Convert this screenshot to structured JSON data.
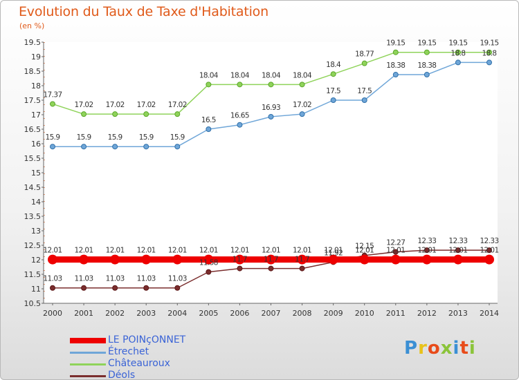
{
  "title": "Evolution du Taux de Taxe d'Habitation",
  "unit_label": "(en %)",
  "logo": {
    "text": "Proxiti",
    "colors": [
      "#3b8fd4",
      "#e8c21a",
      "#e84b1a",
      "#8bc43a",
      "#3b8fd4",
      "#e84b1a",
      "#8bc43a"
    ]
  },
  "chart_data": {
    "type": "line",
    "title": "Evolution du Taux de Taxe d'Habitation",
    "ylabel": "(en %)",
    "xlabel": "",
    "x": [
      "2000",
      "2001",
      "2002",
      "2003",
      "2004",
      "2005",
      "2006",
      "2007",
      "2008",
      "2009",
      "2010",
      "2011",
      "2012",
      "2013",
      "2014"
    ],
    "ylim": [
      10.5,
      19.5
    ],
    "yticks": [
      "10.5",
      "11",
      "11.5",
      "12",
      "12.5",
      "13",
      "13.5",
      "14",
      "14.5",
      "15",
      "15.5",
      "16",
      "16.5",
      "17",
      "17.5",
      "18",
      "18.5",
      "19",
      "19.5"
    ],
    "grid": false,
    "legend_position": "bottom-left",
    "series": [
      {
        "name": "LE POINçONNET",
        "color": "#ee0000",
        "values": [
          12.01,
          12.01,
          12.01,
          12.01,
          12.01,
          12.01,
          12.01,
          12.01,
          12.01,
          12.01,
          12.01,
          12.01,
          12.01,
          12.01,
          12.01
        ],
        "labels": [
          "12.01",
          "12.01",
          "12.01",
          "12.01",
          "12.01",
          "12.01",
          "12.01",
          "12.01",
          "12.01",
          "12.01",
          "12.01",
          "12.01",
          "12.01",
          "12.01",
          "12.01"
        ]
      },
      {
        "name": "Étrechet",
        "color": "#6fa6d8",
        "values": [
          15.9,
          15.9,
          15.9,
          15.9,
          15.9,
          16.5,
          16.65,
          16.93,
          17.02,
          17.5,
          17.5,
          18.38,
          18.38,
          18.8,
          18.8
        ],
        "labels": [
          "15.9",
          "15.9",
          "15.9",
          "15.9",
          "15.9",
          "16.5",
          "16.65",
          "16.93",
          "17.02",
          "17.5",
          "17.5",
          "18.38",
          "18.38",
          "18.8",
          "18.8"
        ]
      },
      {
        "name": "Châteauroux",
        "color": "#8fd35a",
        "values": [
          17.37,
          17.02,
          17.02,
          17.02,
          17.02,
          18.04,
          18.04,
          18.04,
          18.04,
          18.4,
          18.77,
          19.15,
          19.15,
          19.15,
          19.15
        ],
        "labels": [
          "17.37",
          "17.02",
          "17.02",
          "17.02",
          "17.02",
          "18.04",
          "18.04",
          "18.04",
          "18.04",
          "18.4",
          "18.77",
          "19.15",
          "19.15",
          "19.15",
          "19.15"
        ]
      },
      {
        "name": "Déols",
        "color": "#7a2d2d",
        "values": [
          11.03,
          11.03,
          11.03,
          11.03,
          11.03,
          11.58,
          11.7,
          11.7,
          11.7,
          11.92,
          12.15,
          12.27,
          12.33,
          12.33,
          12.33
        ],
        "labels": [
          "11.03",
          "11.03",
          "11.03",
          "11.03",
          "11.03",
          "11.58",
          "11.7",
          "11.7",
          "11.7",
          "11.92",
          "12.15",
          "12.27",
          "12.33",
          "12.33",
          "12.33"
        ]
      }
    ]
  }
}
